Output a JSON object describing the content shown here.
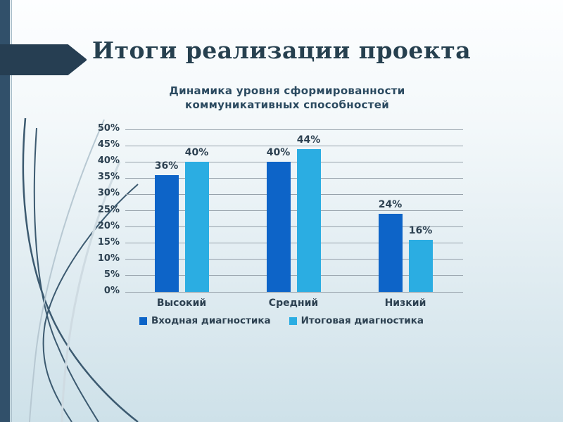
{
  "slide": {
    "title": "Итоги реализации проекта",
    "decor": {
      "sidebar_color": "#31506a",
      "arrow_color": "#263e52",
      "swoosh_dark": "#3c5a70",
      "swoosh_light": "#b7c8d2"
    }
  },
  "chart_data": {
    "type": "bar",
    "title": "Динамика уровня сформированности коммуникативных способностей",
    "categories": [
      "Высокий",
      "Средний",
      "Низкий"
    ],
    "series": [
      {
        "name": "Входная диагностика",
        "color": "#0d64c8",
        "values": [
          36,
          40,
          24
        ]
      },
      {
        "name": "Итоговая диагностика",
        "color": "#2bade2",
        "values": [
          40,
          44,
          16
        ]
      }
    ],
    "value_suffix": "%",
    "ylim": [
      0,
      50
    ],
    "ytick_step": 5,
    "grid": true,
    "gridline_color": "#97a2ab",
    "legend_position": "bottom",
    "data_labels_shown": true
  }
}
